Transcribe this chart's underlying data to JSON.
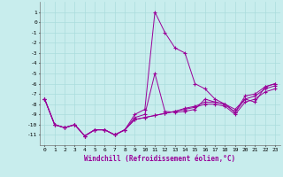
{
  "xlabel": "Windchill (Refroidissement éolien,°C)",
  "background_color": "#c8eded",
  "grid_color": "#aadcdc",
  "line_color": "#990099",
  "x": [
    0,
    1,
    2,
    3,
    4,
    5,
    6,
    7,
    8,
    9,
    10,
    11,
    12,
    13,
    14,
    15,
    16,
    17,
    18,
    19,
    20,
    21,
    22,
    23
  ],
  "series": [
    [
      -7.5,
      -10.0,
      -10.3,
      -10.0,
      -11.1,
      -10.5,
      -10.5,
      -11.0,
      -10.5,
      -9.0,
      -8.5,
      1.0,
      -1.0,
      -2.5,
      -3.0,
      -6.0,
      -6.5,
      -7.5,
      -8.0,
      -8.5,
      -7.5,
      -7.8,
      -6.3,
      -6.0
    ],
    [
      -7.5,
      -10.0,
      -10.3,
      -10.0,
      -11.1,
      -10.5,
      -10.5,
      -11.0,
      -10.5,
      -9.3,
      -9.0,
      -5.0,
      -8.7,
      -8.8,
      -8.7,
      -8.5,
      -7.5,
      -7.8,
      -8.0,
      -8.8,
      -7.2,
      -7.0,
      -6.3,
      -6.0
    ],
    [
      -7.5,
      -10.0,
      -10.3,
      -10.0,
      -11.1,
      -10.5,
      -10.5,
      -11.0,
      -10.5,
      -9.5,
      -9.3,
      -9.1,
      -8.9,
      -8.7,
      -8.5,
      -8.3,
      -8.0,
      -8.0,
      -8.2,
      -9.0,
      -7.8,
      -7.5,
      -6.8,
      -6.5
    ],
    [
      -7.5,
      -10.0,
      -10.3,
      -10.0,
      -11.1,
      -10.5,
      -10.5,
      -11.0,
      -10.5,
      -9.5,
      -9.3,
      -9.1,
      -8.9,
      -8.7,
      -8.4,
      -8.2,
      -7.8,
      -7.8,
      -8.0,
      -8.8,
      -7.5,
      -7.2,
      -6.5,
      -6.2
    ]
  ],
  "ylim": [
    -12,
    2
  ],
  "xlim": [
    -0.5,
    23.5
  ],
  "yticks": [
    1,
    0,
    -1,
    -2,
    -3,
    -4,
    -5,
    -6,
    -7,
    -8,
    -9,
    -10,
    -11
  ],
  "xticks": [
    0,
    1,
    2,
    3,
    4,
    5,
    6,
    7,
    8,
    9,
    10,
    11,
    12,
    13,
    14,
    15,
    16,
    17,
    18,
    19,
    20,
    21,
    22,
    23
  ]
}
